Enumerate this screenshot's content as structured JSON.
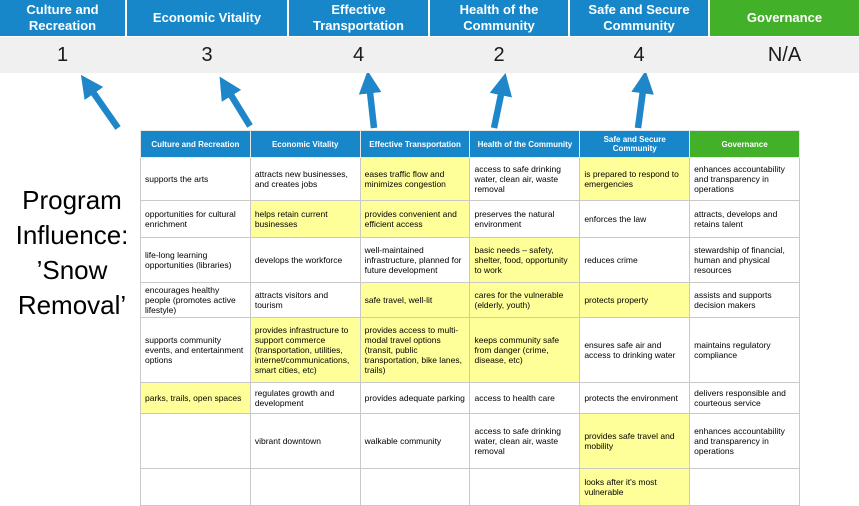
{
  "slide": {
    "title": "Program Influence: ’Snow Removal’"
  },
  "colors": {
    "blue": "#1787c9",
    "green": "#43b02a",
    "highlight": "#ffff99",
    "scorebg": "#f0f0f0",
    "arrow": "#1f87c9"
  },
  "summary": {
    "columns": [
      {
        "label": "Culture and Recreation",
        "score": "1",
        "color": "blue"
      },
      {
        "label": "Economic Vitality",
        "score": "3",
        "color": "blue"
      },
      {
        "label": "Effective Transportation",
        "score": "4",
        "color": "blue"
      },
      {
        "label": "Health of the Community",
        "score": "2",
        "color": "blue"
      },
      {
        "label": "Safe and Secure Community",
        "score": "4",
        "color": "blue"
      },
      {
        "label": "Governance",
        "score": "N/A",
        "color": "green"
      }
    ]
  },
  "matrix": {
    "headers": [
      {
        "label": "Culture and Recreation",
        "color": "blue"
      },
      {
        "label": "Economic Vitality",
        "color": "blue"
      },
      {
        "label": "Effective Transportation",
        "color": "blue"
      },
      {
        "label": "Health of the Community",
        "color": "blue"
      },
      {
        "label": "Safe and Secure Community",
        "color": "blue"
      },
      {
        "label": "Governance",
        "color": "green"
      }
    ],
    "rows": [
      [
        {
          "text": "supports the arts",
          "highlight": false
        },
        {
          "text": "attracts new businesses, and creates jobs",
          "highlight": false
        },
        {
          "text": "eases traffic flow and minimizes congestion",
          "highlight": true
        },
        {
          "text": "access to safe drinking water, clean air, waste removal",
          "highlight": false
        },
        {
          "text": "is prepared to respond to emergencies",
          "highlight": true
        },
        {
          "text": "enhances accountability and transparency in operations",
          "highlight": false
        }
      ],
      [
        {
          "text": "opportunities for cultural enrichment",
          "highlight": false
        },
        {
          "text": "helps retain current businesses",
          "highlight": true
        },
        {
          "text": "provides convenient and efficient access",
          "highlight": true
        },
        {
          "text": "preserves the natural environment",
          "highlight": false
        },
        {
          "text": "enforces the law",
          "highlight": false
        },
        {
          "text": "attracts, develops and retains talent",
          "highlight": false
        }
      ],
      [
        {
          "text": "life-long learning opportunities (libraries)",
          "highlight": false
        },
        {
          "text": "develops the workforce",
          "highlight": false
        },
        {
          "text": "well-maintained infrastructure, planned for future development",
          "highlight": false
        },
        {
          "text": "basic needs – safety, shelter, food, opportunity to work",
          "highlight": true
        },
        {
          "text": "reduces crime",
          "highlight": false
        },
        {
          "text": "stewardship of financial, human and physical resources",
          "highlight": false
        }
      ],
      [
        {
          "text": "encourages healthy people (promotes active lifestyle)",
          "highlight": false
        },
        {
          "text": "attracts visitors and tourism",
          "highlight": false
        },
        {
          "text": "safe travel, well-lit",
          "highlight": true
        },
        {
          "text": "cares for the vulnerable (elderly, youth)",
          "highlight": true
        },
        {
          "text": "protects property",
          "highlight": true
        },
        {
          "text": "assists and supports decision makers",
          "highlight": false
        }
      ],
      [
        {
          "text": "supports community events, and entertainment options",
          "highlight": false
        },
        {
          "text": "provides infrastructure to support commerce (transportation, utilities, internet/communications, smart cities, etc)",
          "highlight": true
        },
        {
          "text": "provides access to multi-modal travel options (transit, public transportation, bike lanes, trails)",
          "highlight": true
        },
        {
          "text": "keeps community safe from danger (crime, disease, etc)",
          "highlight": true
        },
        {
          "text": "ensures safe air and access to drinking water",
          "highlight": false
        },
        {
          "text": "maintains regulatory compliance",
          "highlight": false
        }
      ],
      [
        {
          "text": "parks, trails, open spaces",
          "highlight": true
        },
        {
          "text": "regulates growth and development",
          "highlight": false
        },
        {
          "text": "provides adequate parking",
          "highlight": false
        },
        {
          "text": "access to health care",
          "highlight": false
        },
        {
          "text": "protects the environment",
          "highlight": false
        },
        {
          "text": "delivers responsible and courteous service",
          "highlight": false
        }
      ],
      [
        {
          "text": "",
          "highlight": false
        },
        {
          "text": "vibrant downtown",
          "highlight": false
        },
        {
          "text": "walkable community",
          "highlight": false
        },
        {
          "text": "access to safe drinking water, clean air, waste removal",
          "highlight": false
        },
        {
          "text": "provides safe travel and mobility",
          "highlight": true
        },
        {
          "text": "enhances accountability and transparency in operations",
          "highlight": false
        }
      ],
      [
        {
          "text": "",
          "highlight": false
        },
        {
          "text": "",
          "highlight": false
        },
        {
          "text": "",
          "highlight": false
        },
        {
          "text": "",
          "highlight": false
        },
        {
          "text": "looks after it's most vulnerable",
          "highlight": true
        },
        {
          "text": "",
          "highlight": false
        }
      ]
    ]
  }
}
